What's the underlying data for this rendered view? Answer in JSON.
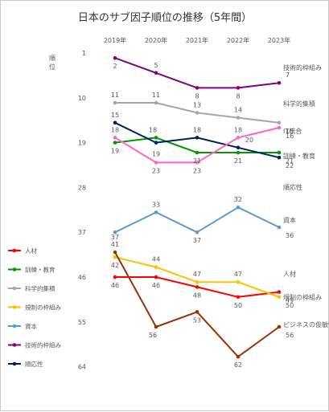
{
  "chart_data": {
    "type": "line",
    "title": "日本のサブ因子順位の推移（5年間）",
    "ylabel": "順位",
    "y_reversed": true,
    "ylim": [
      1,
      64
    ],
    "yticks": [
      1,
      10,
      19,
      28,
      37,
      46,
      55,
      64
    ],
    "x": [
      "2019年",
      "2020年",
      "2021年",
      "2022年",
      "2023年"
    ],
    "grid": false,
    "legend": "left",
    "series": [
      {
        "name": "人材",
        "color": "#ff0000",
        "values": [
          46,
          46,
          48,
          50,
          49
        ],
        "end_label": "人材"
      },
      {
        "name": "訓練・教育",
        "color": "#009900",
        "values": [
          19,
          18,
          21,
          21,
          21
        ],
        "end_label": "訓練・教育"
      },
      {
        "name": "科学的集積",
        "color": "#a6a6a6",
        "values": [
          11,
          11,
          13,
          14,
          15
        ],
        "end_label": "科学的集積"
      },
      {
        "name": "規制の枠組み",
        "color": "#ffc000",
        "values": [
          42,
          44,
          47,
          47,
          50
        ],
        "end_label": "規制の枠組み"
      },
      {
        "name": "資本",
        "color": "#5b9bd5",
        "values": [
          37,
          33,
          37,
          32,
          36
        ],
        "end_label": "資本"
      },
      {
        "name": "技術的枠組み",
        "color": "#7f0080",
        "values": [
          2,
          5,
          8,
          8,
          7
        ],
        "end_label": "技術的枠組み"
      },
      {
        "name": "順応性",
        "color": "#002060",
        "values": [
          15,
          19,
          18,
          20,
          22
        ],
        "end_label": "順応性"
      },
      {
        "name": "",
        "color": "#ff66cc",
        "values": [
          18,
          23,
          23,
          18,
          16
        ],
        "end_label": "IT統合"
      },
      {
        "name": "",
        "color": "#993300",
        "values": [
          41,
          56,
          53,
          62,
          56
        ],
        "end_label": "ビジネスの俊敏性"
      }
    ]
  }
}
